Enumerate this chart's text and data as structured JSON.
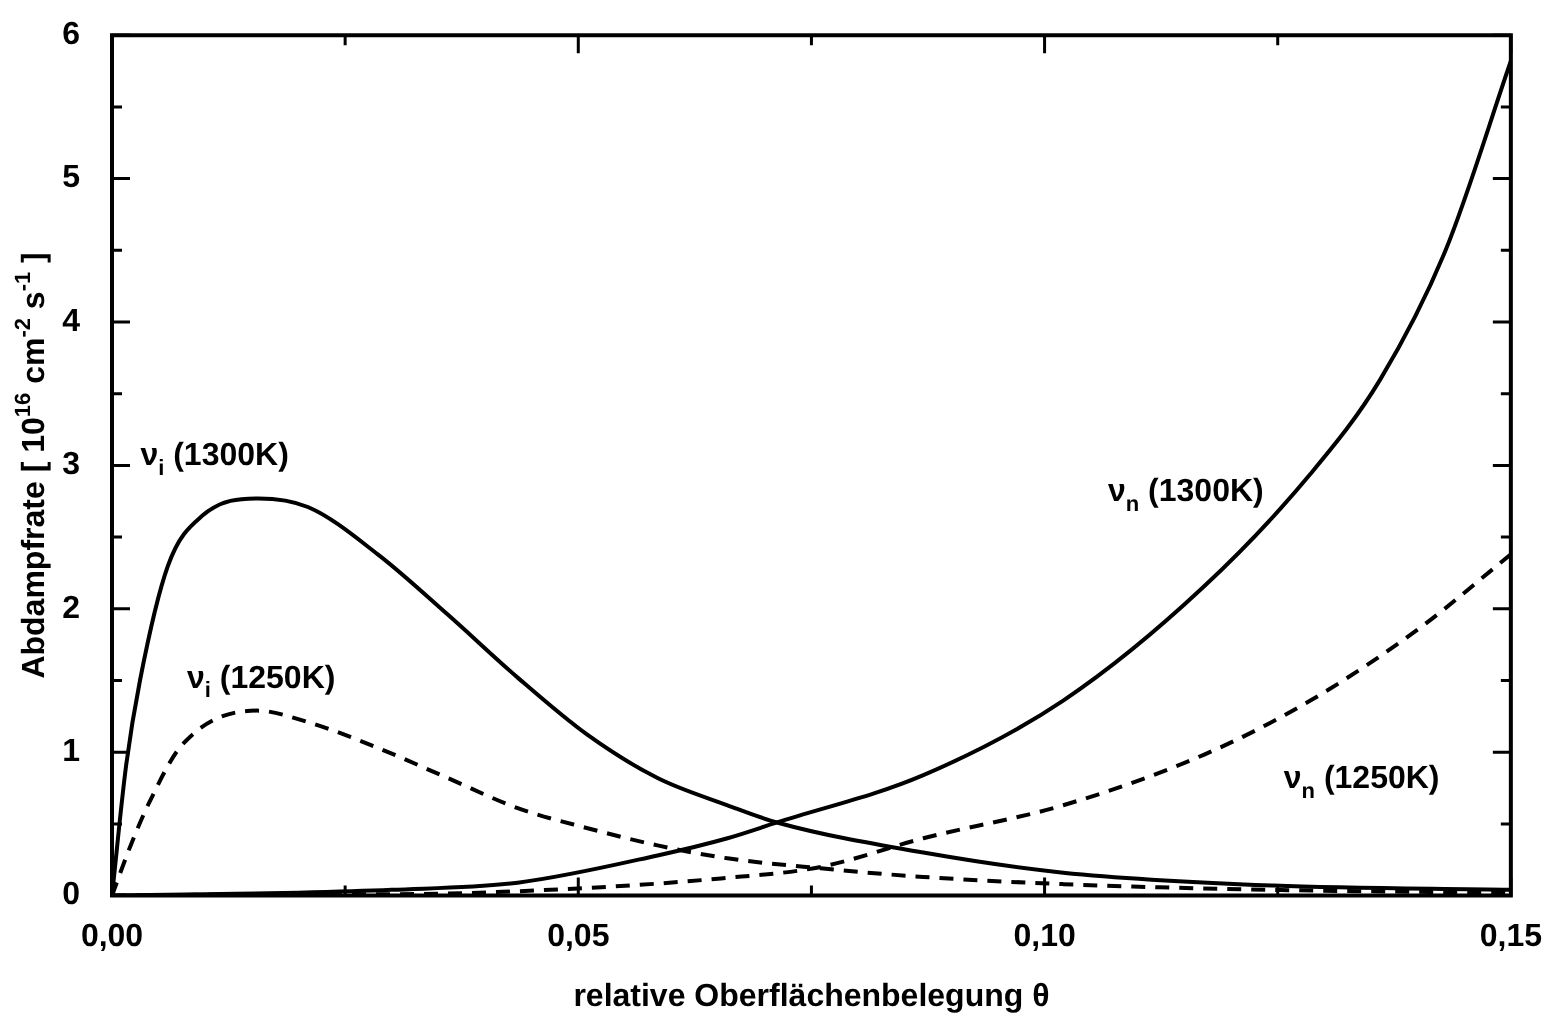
{
  "chart_data": {
    "type": "line",
    "xlabel": "relative Oberflächenbelegung θ",
    "ylabel": "Abdampfrate [ 10$^{16}$ cm$^{-2}$ s$^{-1}$ ]",
    "xlim": [
      0,
      0.15
    ],
    "ylim": [
      0,
      6
    ],
    "xticks": [
      {
        "value": 0,
        "label": "0,00"
      },
      {
        "value": 0.025,
        "label": null
      },
      {
        "value": 0.05,
        "label": "0,05"
      },
      {
        "value": 0.075,
        "label": null
      },
      {
        "value": 0.1,
        "label": "0,10"
      },
      {
        "value": 0.125,
        "label": null
      },
      {
        "value": 0.15,
        "label": "0,15"
      }
    ],
    "yticks": [
      0,
      {
        "value": 0.5,
        "label": null
      },
      1,
      {
        "value": 1.5,
        "label": null
      },
      2,
      {
        "value": 2.5,
        "label": null
      },
      3,
      {
        "value": 3.5,
        "label": null
      },
      4,
      {
        "value": 4.5,
        "label": null
      },
      5,
      {
        "value": 5.5,
        "label": null
      },
      6
    ],
    "grid": false,
    "legend": false,
    "marker": "none",
    "series": [
      {
        "name": "ν$_{i}$ (1300K)",
        "color": "#000000",
        "line_style": "solid",
        "x": [
          0,
          0.0015,
          0.003,
          0.006,
          0.0097,
          0.0157,
          0.021,
          0.0285,
          0.036,
          0.0435,
          0.051,
          0.0585,
          0.066,
          0.0713,
          0.087,
          0.102,
          0.1245,
          0.15
        ],
        "values": [
          0,
          0.9,
          1.5,
          2.3,
          2.65,
          2.77,
          2.71,
          2.38,
          1.96,
          1.52,
          1.12,
          0.82,
          0.63,
          0.51,
          0.3,
          0.16,
          0.07,
          0.04
        ]
      },
      {
        "name": "ν$_{i}$ (1250K)",
        "color": "#000000",
        "line_style": "dashed",
        "x": [
          0,
          0.002,
          0.004,
          0.0075,
          0.0155,
          0.021,
          0.0285,
          0.036,
          0.0435,
          0.051,
          0.0585,
          0.066,
          0.076,
          0.087,
          0.102,
          0.1245,
          0.15
        ],
        "values": [
          0,
          0.35,
          0.65,
          1.05,
          1.29,
          1.21,
          1.03,
          0.82,
          0.61,
          0.47,
          0.35,
          0.26,
          0.19,
          0.13,
          0.08,
          0.04,
          0.02
        ]
      },
      {
        "name": "ν$_{n}$ (1300K)",
        "color": "#000000",
        "line_style": "solid",
        "x": [
          0,
          0.01,
          0.02,
          0.03,
          0.0435,
          0.0585,
          0.066,
          0.0713,
          0.087,
          0.102,
          0.117,
          0.1285,
          0.136,
          0.143,
          0.15
        ],
        "values": [
          0,
          0.01,
          0.02,
          0.04,
          0.09,
          0.28,
          0.4,
          0.51,
          0.84,
          1.36,
          2.15,
          2.94,
          3.6,
          4.5,
          5.82
        ]
      },
      {
        "name": "ν$_{n}$ (1250K)",
        "color": "#000000",
        "line_style": "dashed",
        "x": [
          0,
          0.02,
          0.03,
          0.05,
          0.0653,
          0.076,
          0.087,
          0.102,
          0.117,
          0.1285,
          0.1403,
          0.15
        ],
        "values": [
          0,
          0.01,
          0.01,
          0.05,
          0.12,
          0.2,
          0.4,
          0.63,
          0.98,
          1.36,
          1.87,
          2.38
        ]
      }
    ]
  }
}
